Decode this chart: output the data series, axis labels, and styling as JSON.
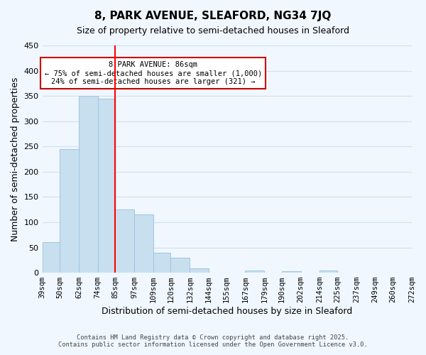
{
  "title": "8, PARK AVENUE, SLEAFORD, NG34 7JQ",
  "subtitle": "Size of property relative to semi-detached houses in Sleaford",
  "xlabel": "Distribution of semi-detached houses by size in Sleaford",
  "ylabel": "Number of semi-detached properties",
  "bins": [
    "39sqm",
    "50sqm",
    "62sqm",
    "74sqm",
    "85sqm",
    "97sqm",
    "109sqm",
    "120sqm",
    "132sqm",
    "144sqm",
    "155sqm",
    "167sqm",
    "179sqm",
    "190sqm",
    "202sqm",
    "214sqm",
    "225sqm",
    "237sqm",
    "249sqm",
    "260sqm",
    "272sqm"
  ],
  "bin_edges": [
    39,
    50,
    62,
    74,
    85,
    97,
    109,
    120,
    132,
    144,
    155,
    167,
    179,
    190,
    202,
    214,
    225,
    237,
    249,
    260,
    272
  ],
  "values": [
    60,
    245,
    350,
    345,
    125,
    115,
    40,
    30,
    8,
    0,
    0,
    5,
    0,
    3,
    0,
    5,
    0,
    0,
    0,
    0
  ],
  "bar_color": "#c8dff0",
  "bar_edge_color": "#a0c4e0",
  "property_line_x": 85,
  "annotation_title": "8 PARK AVENUE: 86sqm",
  "annotation_line1": "← 75% of semi-detached houses are smaller (1,000)",
  "annotation_line2": "24% of semi-detached houses are larger (321) →",
  "annotation_box_color": "#ffffff",
  "annotation_box_edge_color": "#cc0000",
  "ylim": [
    0,
    450
  ],
  "grid_color": "#d0e0f0",
  "background_color": "#f0f7ff",
  "footer_line1": "Contains HM Land Registry data © Crown copyright and database right 2025.",
  "footer_line2": "Contains public sector information licensed under the Open Government Licence v3.0."
}
